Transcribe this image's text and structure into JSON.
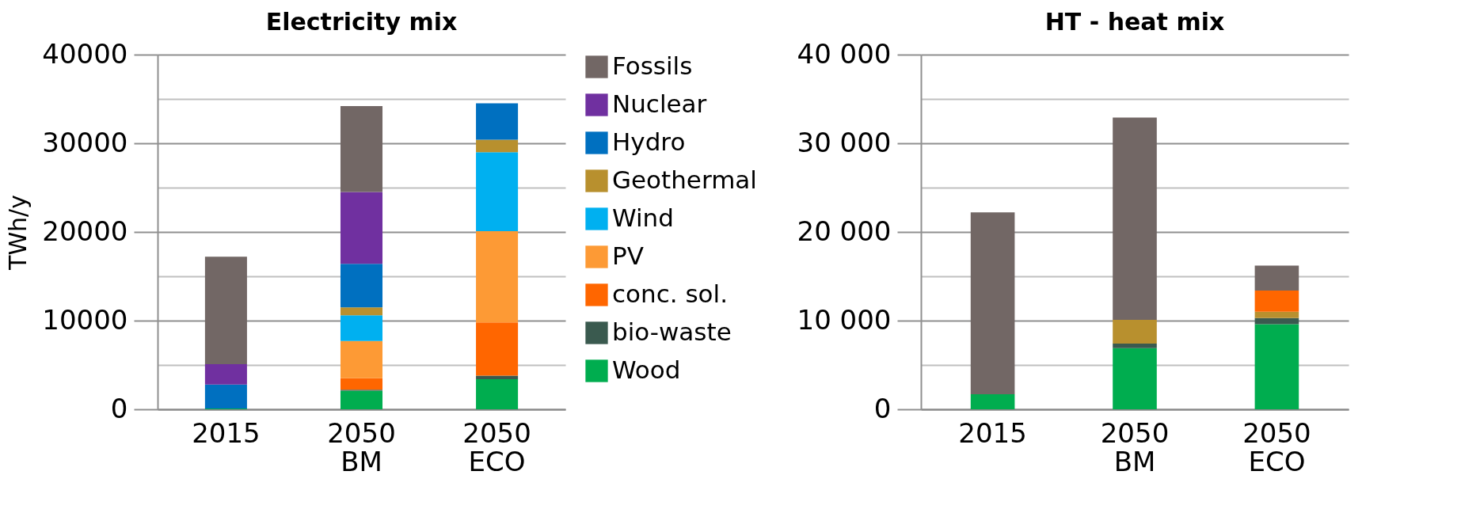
{
  "chart_data": [
    {
      "type": "bar",
      "title": "Electricity mix",
      "ylabel": "TWh/y",
      "categories": [
        "2015",
        "2050 BM",
        "2050 ECO"
      ],
      "stacked": true,
      "legend": "right",
      "grid": "y",
      "ylim": [
        0,
        40000
      ],
      "yticks": [
        0,
        {
          "value": 5000,
          "label": null
        },
        10000,
        {
          "value": 15000,
          "label": null
        },
        20000,
        {
          "value": 25000,
          "label": null
        },
        30000,
        {
          "value": 35000,
          "label": null
        },
        40000
      ],
      "series": [
        {
          "name": "Wood",
          "color": "#00ad4f",
          "values": [
            100,
            2100,
            3400
          ]
        },
        {
          "name": "bio-waste",
          "color": "#3a5a4f",
          "values": [
            null,
            100,
            400
          ]
        },
        {
          "name": "conc. sol.",
          "color": "#ff6600",
          "values": [
            null,
            1300,
            6000
          ]
        },
        {
          "name": "PV",
          "color": "#fd9a35",
          "values": [
            null,
            4200,
            10300
          ]
        },
        {
          "name": "Wind",
          "color": "#00b0f0",
          "values": [
            null,
            2900,
            8900
          ]
        },
        {
          "name": "Geothermal",
          "color": "#b8902e",
          "values": [
            null,
            900,
            1400
          ]
        },
        {
          "name": "Hydro",
          "color": "#0070c0",
          "values": [
            2700,
            4900,
            4100
          ]
        },
        {
          "name": "Nuclear",
          "color": "#7030a0",
          "values": [
            2300,
            8100,
            null
          ]
        },
        {
          "name": "Fossils",
          "color": "#726765",
          "values": [
            12100,
            9700,
            null
          ]
        }
      ]
    },
    {
      "type": "bar",
      "title": "HT - heat mix",
      "categories": [
        "2015",
        "2050 BM",
        "2050 ECO"
      ],
      "stacked": true,
      "grid": "y",
      "ylim": [
        0,
        40000
      ],
      "yticks": [
        {
          "value": 0,
          "label": "0"
        },
        {
          "value": 5000,
          "label": null
        },
        {
          "value": 10000,
          "label": "10 000"
        },
        {
          "value": 15000,
          "label": null
        },
        {
          "value": 20000,
          "label": "20 000"
        },
        {
          "value": 25000,
          "label": null
        },
        {
          "value": 30000,
          "label": "30 000"
        },
        {
          "value": 35000,
          "label": null
        },
        {
          "value": 40000,
          "label": "40 000"
        }
      ],
      "series": [
        {
          "color": "#00ad4f",
          "values": [
            1700,
            6900,
            9600
          ]
        },
        {
          "color": "#3a5a4f",
          "values": [
            null,
            500,
            700
          ]
        },
        {
          "color": "#b8902e",
          "values": [
            null,
            2700,
            700
          ]
        },
        {
          "color": "#ff6600",
          "values": [
            null,
            null,
            2400
          ]
        },
        {
          "color": "#726765",
          "values": [
            20500,
            22800,
            2800
          ]
        }
      ]
    }
  ]
}
